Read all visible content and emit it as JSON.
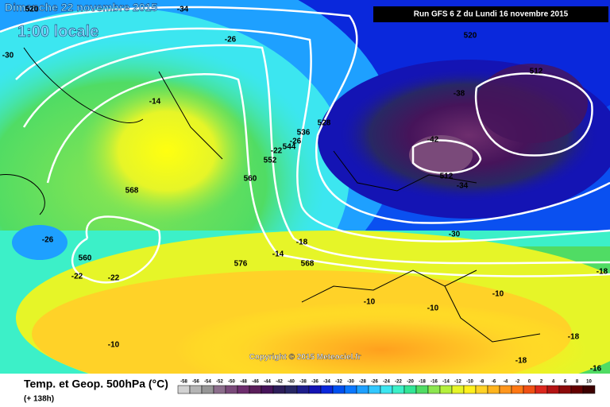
{
  "header": {
    "date": "Dimanche 22 novembre 2015",
    "time": "1:00 locale",
    "run": "Run GFS 6 Z du Lundi 16 novembre 2015"
  },
  "copyright": "Copyright © 2015 Meteociel.fr",
  "footer": {
    "title": "Temp. et Geop. 500hPa (°C)",
    "lead": "(+ 138h)"
  },
  "scale": {
    "labels": [
      -58,
      -56,
      -54,
      -52,
      -50,
      -48,
      -46,
      -44,
      -42,
      -40,
      -38,
      -36,
      -34,
      -32,
      -30,
      -28,
      -26,
      -24,
      -22,
      -20,
      -18,
      -16,
      -14,
      -12,
      -10,
      -8,
      -6,
      -4,
      -2,
      0,
      2,
      4,
      6,
      8,
      10
    ],
    "colors": [
      "#d2d2d2",
      "#b4b4b4",
      "#969696",
      "#8c6e8c",
      "#7a4a7a",
      "#6e2e6e",
      "#5a1e5a",
      "#46145a",
      "#2d1e5a",
      "#282864",
      "#1e1e8c",
      "#1414b4",
      "#0a28dc",
      "#0050f0",
      "#0a78ff",
      "#1ea0ff",
      "#32c8ff",
      "#3ce6f0",
      "#3cf0c8",
      "#32e696",
      "#50dc64",
      "#8ce650",
      "#b4f03c",
      "#e6f528",
      "#fff01e",
      "#ffd228",
      "#ffb41e",
      "#ff961e",
      "#ff7814",
      "#f05014",
      "#dc281e",
      "#b41414",
      "#8c0a0a",
      "#640000",
      "#3c0000"
    ]
  },
  "contour_labels": {
    "geopotential": [
      520,
      520,
      512,
      528,
      536,
      544,
      552,
      560,
      568,
      560,
      576,
      568,
      512
    ],
    "temperature": [
      -34,
      -30,
      -26,
      -14,
      -38,
      -42,
      -34,
      -30,
      -22,
      -26,
      -26,
      -22,
      -22,
      -18,
      -14,
      -10,
      -10,
      -10,
      -10,
      -18,
      -18,
      -18,
      -16
    ]
  }
}
